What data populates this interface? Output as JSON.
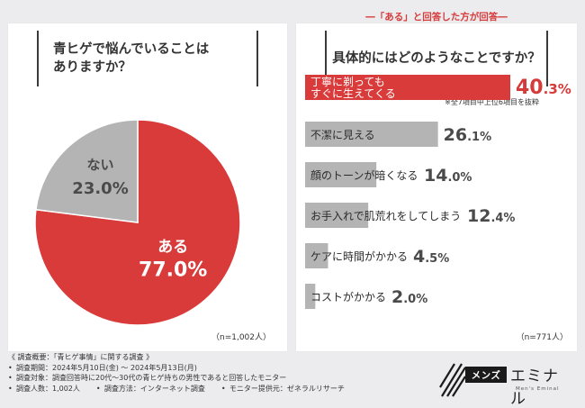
{
  "header": {
    "badge": "―「ある」と回答した方が回答―"
  },
  "left": {
    "question": "青ヒゲで悩んでいることは\nありますか？",
    "n_label": "（n=1,002人）"
  },
  "right": {
    "question": "具体的にはどのようなことですか？",
    "note": "※全7項目中上位6項目を抜粋",
    "n_label": "（n=771人）"
  },
  "colors": {
    "red": "#d93a3a",
    "gray": "#b4b4b4",
    "red_text": "#d63b3b",
    "gray_text": "#4a4a4a"
  },
  "chart_data": [
    {
      "type": "pie",
      "title": "青ヒゲで悩んでいることはありますか？",
      "slices": [
        {
          "label": "ある",
          "value": 77.0,
          "display": "77.0%"
        },
        {
          "label": "ない",
          "value": 23.0,
          "display": "23.0%"
        }
      ]
    },
    {
      "type": "bar",
      "orientation": "horizontal",
      "title": "具体的にはどのようなことですか？",
      "xlim": [
        0,
        40.3
      ],
      "categories": [
        "丁寧に剃ってもすぐに生えてくる",
        "不潔に見える",
        "顔のトーンが暗くなる",
        "お手入れで肌荒れをしてしまう",
        "ケアに時間がかかる",
        "コストがかかる"
      ],
      "category_lines": [
        [
          "丁寧に剃っても",
          "すぐに生えてくる"
        ],
        [
          "不潔に見える"
        ],
        [
          "顔のトーンが暗くなる"
        ],
        [
          "お手入れで肌荒れをしてしまう"
        ],
        [
          "ケアに時間がかかる"
        ],
        [
          "コストがかかる"
        ]
      ],
      "values": [
        40.3,
        26.1,
        14.0,
        12.4,
        4.5,
        2.0
      ],
      "value_int": [
        "40",
        "26",
        "14",
        "12",
        "4",
        "2"
      ],
      "value_dec": [
        ".3%",
        ".1%",
        ".0%",
        ".4%",
        ".5%",
        ".0%"
      ]
    }
  ],
  "footer": {
    "title": "《 調査概要：「青ヒゲ事情」に関する調査 》",
    "period": "調査期間：2024年5月10日(金) ～ 2024年5月13日(月)",
    "target": "調査対象：調査回答時に20代～30代の青ヒゲ持ちの男性であると回答したモニター",
    "count": "調査人数：1,002人",
    "method": "調査方法：インターネット調査",
    "provider": "モニター提供元：ゼネラルリサーチ"
  },
  "logo": {
    "box": "メンズ",
    "text": "エミナル",
    "sub": "Men's Eminal"
  }
}
